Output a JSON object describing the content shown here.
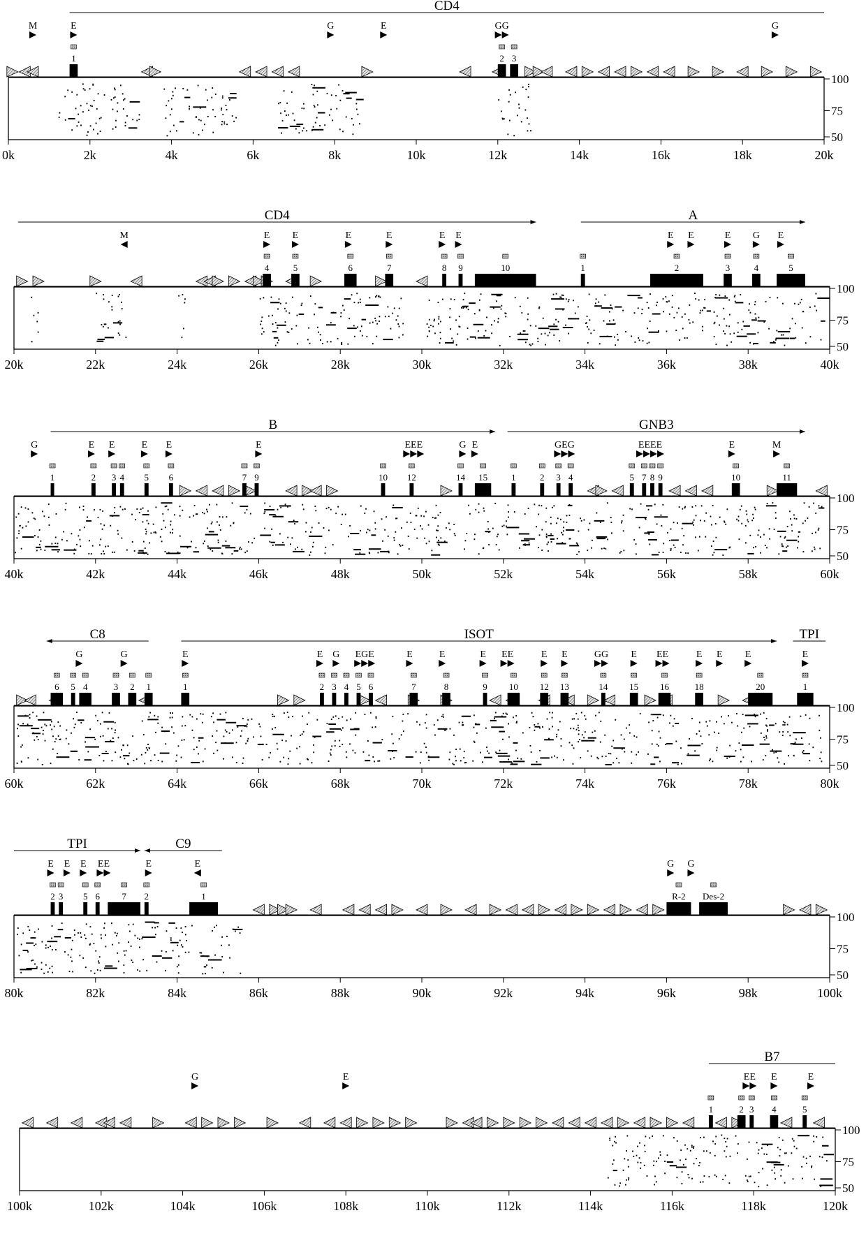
{
  "panels": [
    {
      "name": "panel-0-20k",
      "x_ticks": [
        "0k",
        "2k",
        "4k",
        "6k",
        "8k",
        "10k",
        "12k",
        "14k",
        "16k",
        "18k",
        "20k"
      ],
      "y_ticks": [
        "100",
        "75",
        "50"
      ],
      "genes": [
        {
          "label": "CD4",
          "start": 1.5,
          "end": 20,
          "direction": "none"
        }
      ],
      "markers": [
        {
          "letter": "M",
          "pos": 0.6,
          "dir": "right"
        },
        {
          "letter": "E",
          "pos": 1.6,
          "dir": "right"
        },
        {
          "letter": "G",
          "pos": 7.9,
          "dir": "right"
        },
        {
          "letter": "E",
          "pos": 9.2,
          "dir": "right"
        },
        {
          "letter": "GG",
          "pos": 12.1,
          "dir": "right"
        },
        {
          "letter": "G",
          "pos": 18.8,
          "dir": "right"
        }
      ],
      "exons": [
        {
          "label": "1",
          "start": 1.5,
          "end": 1.7
        },
        {
          "label": "2",
          "start": 12.0,
          "end": 12.2
        },
        {
          "label": "3",
          "start": 12.3,
          "end": 12.5
        }
      ]
    },
    {
      "name": "panel-20k-40k",
      "x_ticks": [
        "20k",
        "22k",
        "24k",
        "26k",
        "28k",
        "30k",
        "32k",
        "34k",
        "36k",
        "38k",
        "40k"
      ],
      "y_ticks": [
        "100",
        "75",
        "50"
      ],
      "genes": [
        {
          "label": "CD4",
          "start": 20.1,
          "end": 32.8,
          "direction": "right"
        },
        {
          "label": "A",
          "start": 33.9,
          "end": 39.4,
          "direction": "right"
        }
      ],
      "markers": [
        {
          "letter": "M",
          "pos": 22.7,
          "dir": "left"
        },
        {
          "letter": "E",
          "pos": 26.2,
          "dir": "right"
        },
        {
          "letter": "E",
          "pos": 26.9,
          "dir": "right"
        },
        {
          "letter": "E",
          "pos": 28.2,
          "dir": "right"
        },
        {
          "letter": "E",
          "pos": 29.2,
          "dir": "right"
        },
        {
          "letter": "E",
          "pos": 30.5,
          "dir": "right"
        },
        {
          "letter": "E",
          "pos": 30.9,
          "dir": "right"
        },
        {
          "letter": "E",
          "pos": 36.1,
          "dir": "right"
        },
        {
          "letter": "E",
          "pos": 36.6,
          "dir": "right"
        },
        {
          "letter": "E",
          "pos": 37.5,
          "dir": "right"
        },
        {
          "letter": "G",
          "pos": 38.2,
          "dir": "right"
        },
        {
          "letter": "E",
          "pos": 38.8,
          "dir": "right"
        }
      ],
      "exons": [
        {
          "label": "4",
          "start": 26.1,
          "end": 26.3
        },
        {
          "label": "5",
          "start": 26.8,
          "end": 27.0
        },
        {
          "label": "6",
          "start": 28.1,
          "end": 28.4
        },
        {
          "label": "7",
          "start": 29.1,
          "end": 29.3
        },
        {
          "label": "8",
          "start": 30.5,
          "end": 30.6
        },
        {
          "label": "9",
          "start": 30.9,
          "end": 31.0
        },
        {
          "label": "10",
          "start": 31.3,
          "end": 32.8
        },
        {
          "label": "1",
          "start": 33.9,
          "end": 34.0
        },
        {
          "label": "2",
          "start": 35.6,
          "end": 36.9
        },
        {
          "label": "3",
          "start": 37.4,
          "end": 37.6
        },
        {
          "label": "4",
          "start": 38.1,
          "end": 38.3
        },
        {
          "label": "5",
          "start": 38.7,
          "end": 39.4
        }
      ]
    },
    {
      "name": "panel-40k-60k",
      "x_ticks": [
        "40k",
        "42k",
        "44k",
        "46k",
        "48k",
        "50k",
        "52k",
        "54k",
        "56k",
        "58k",
        "60k"
      ],
      "y_ticks": [
        "100",
        "75",
        "50"
      ],
      "genes": [
        {
          "label": "B",
          "start": 40.9,
          "end": 51.8,
          "direction": "right"
        },
        {
          "label": "GNB3",
          "start": 52.1,
          "end": 59.4,
          "direction": "right"
        }
      ],
      "markers": [
        {
          "letter": "G",
          "pos": 40.5,
          "dir": "right"
        },
        {
          "letter": "E",
          "pos": 41.9,
          "dir": "right"
        },
        {
          "letter": "E",
          "pos": 42.4,
          "dir": "right"
        },
        {
          "letter": "E",
          "pos": 43.2,
          "dir": "right"
        },
        {
          "letter": "E",
          "pos": 43.8,
          "dir": "right"
        },
        {
          "letter": "E",
          "pos": 46.0,
          "dir": "right"
        },
        {
          "letter": "EEE",
          "pos": 49.8,
          "dir": "right"
        },
        {
          "letter": "G",
          "pos": 51.0,
          "dir": "right"
        },
        {
          "letter": "E",
          "pos": 51.3,
          "dir": "right"
        },
        {
          "letter": "GEG",
          "pos": 53.5,
          "dir": "right"
        },
        {
          "letter": "EEEE",
          "pos": 55.6,
          "dir": "right"
        },
        {
          "letter": "E",
          "pos": 57.6,
          "dir": "right"
        },
        {
          "letter": "M",
          "pos": 58.7,
          "dir": "right"
        }
      ],
      "exons": [
        {
          "label": "1",
          "start": 40.9,
          "end": 40.95
        },
        {
          "label": "2",
          "start": 41.9,
          "end": 42.0
        },
        {
          "label": "3",
          "start": 42.4,
          "end": 42.5
        },
        {
          "label": "4",
          "start": 42.6,
          "end": 42.7
        },
        {
          "label": "5",
          "start": 43.2,
          "end": 43.3
        },
        {
          "label": "6",
          "start": 43.8,
          "end": 43.9
        },
        {
          "label": "7",
          "start": 45.6,
          "end": 45.7
        },
        {
          "label": "9",
          "start": 45.9,
          "end": 46.0
        },
        {
          "label": "10",
          "start": 49.0,
          "end": 49.1
        },
        {
          "label": "12",
          "start": 49.7,
          "end": 49.8
        },
        {
          "label": "14",
          "start": 50.9,
          "end": 51.0
        },
        {
          "label": "15",
          "start": 51.3,
          "end": 51.7
        },
        {
          "label": "1",
          "start": 52.2,
          "end": 52.3
        },
        {
          "label": "2",
          "start": 52.9,
          "end": 53.0
        },
        {
          "label": "3",
          "start": 53.3,
          "end": 53.4
        },
        {
          "label": "4",
          "start": 53.6,
          "end": 53.7
        },
        {
          "label": "5",
          "start": 55.1,
          "end": 55.2
        },
        {
          "label": "7",
          "start": 55.4,
          "end": 55.5
        },
        {
          "label": "8",
          "start": 55.6,
          "end": 55.7
        },
        {
          "label": "9",
          "start": 55.8,
          "end": 55.9
        },
        {
          "label": "10",
          "start": 57.6,
          "end": 57.8
        },
        {
          "label": "11",
          "start": 58.7,
          "end": 59.2
        }
      ]
    },
    {
      "name": "panel-60k-80k",
      "x_ticks": [
        "60k",
        "62k",
        "64k",
        "66k",
        "68k",
        "70k",
        "72k",
        "74k",
        "76k",
        "78k",
        "80k"
      ],
      "y_ticks": [
        "100",
        "75",
        "50"
      ],
      "genes": [
        {
          "label": "C8",
          "start": 60.8,
          "end": 63.3,
          "direction": "left"
        },
        {
          "label": "ISOT",
          "start": 64.1,
          "end": 78.7,
          "direction": "right"
        },
        {
          "label": "TPI",
          "start": 79.1,
          "end": 79.9,
          "direction": "none"
        }
      ],
      "markers": [
        {
          "letter": "G",
          "pos": 61.6,
          "dir": "right"
        },
        {
          "letter": "G",
          "pos": 62.7,
          "dir": "right"
        },
        {
          "letter": "E",
          "pos": 64.2,
          "dir": "right"
        },
        {
          "letter": "E",
          "pos": 67.5,
          "dir": "right"
        },
        {
          "letter": "G",
          "pos": 67.9,
          "dir": "right"
        },
        {
          "letter": "EGE",
          "pos": 68.6,
          "dir": "right"
        },
        {
          "letter": "E",
          "pos": 69.7,
          "dir": "right"
        },
        {
          "letter": "E",
          "pos": 70.5,
          "dir": "right"
        },
        {
          "letter": "E",
          "pos": 71.5,
          "dir": "right"
        },
        {
          "letter": "EE",
          "pos": 72.1,
          "dir": "right"
        },
        {
          "letter": "E",
          "pos": 73.0,
          "dir": "right"
        },
        {
          "letter": "E",
          "pos": 73.5,
          "dir": "right"
        },
        {
          "letter": "GG",
          "pos": 74.4,
          "dir": "right"
        },
        {
          "letter": "E",
          "pos": 75.2,
          "dir": "right"
        },
        {
          "letter": "EE",
          "pos": 75.9,
          "dir": "right"
        },
        {
          "letter": "E",
          "pos": 76.8,
          "dir": "right"
        },
        {
          "letter": "E",
          "pos": 77.3,
          "dir": "right"
        },
        {
          "letter": "E",
          "pos": 78.0,
          "dir": "right"
        },
        {
          "letter": "E",
          "pos": 79.4,
          "dir": "right"
        }
      ],
      "exons": [
        {
          "label": "6",
          "start": 60.9,
          "end": 61.2
        },
        {
          "label": "5",
          "start": 61.4,
          "end": 61.5
        },
        {
          "label": "4",
          "start": 61.6,
          "end": 61.9
        },
        {
          "label": "3",
          "start": 62.4,
          "end": 62.6
        },
        {
          "label": "2",
          "start": 62.8,
          "end": 63.0
        },
        {
          "label": "1",
          "start": 63.2,
          "end": 63.4
        },
        {
          "label": "1",
          "start": 64.1,
          "end": 64.3
        },
        {
          "label": "2",
          "start": 67.5,
          "end": 67.6
        },
        {
          "label": "3",
          "start": 67.8,
          "end": 67.9
        },
        {
          "label": "4",
          "start": 68.1,
          "end": 68.2
        },
        {
          "label": "5",
          "start": 68.4,
          "end": 68.5
        },
        {
          "label": "6",
          "start": 68.7,
          "end": 68.8
        },
        {
          "label": "7",
          "start": 69.7,
          "end": 69.9
        },
        {
          "label": "8",
          "start": 70.5,
          "end": 70.7
        },
        {
          "label": "9",
          "start": 71.5,
          "end": 71.6
        },
        {
          "label": "10",
          "start": 72.1,
          "end": 72.4
        },
        {
          "label": "12",
          "start": 72.9,
          "end": 73.1
        },
        {
          "label": "13",
          "start": 73.4,
          "end": 73.6
        },
        {
          "label": "14",
          "start": 74.4,
          "end": 74.5
        },
        {
          "label": "15",
          "start": 75.1,
          "end": 75.3
        },
        {
          "label": "16",
          "start": 75.8,
          "end": 76.1
        },
        {
          "label": "18",
          "start": 76.7,
          "end": 76.9
        },
        {
          "label": "20",
          "start": 78.0,
          "end": 78.6
        },
        {
          "label": "1",
          "start": 79.2,
          "end": 79.6
        }
      ]
    },
    {
      "name": "panel-80k-100k",
      "x_ticks": [
        "80k",
        "82k",
        "84k",
        "86k",
        "88k",
        "90k",
        "92k",
        "94k",
        "96k",
        "98k",
        "100k"
      ],
      "y_ticks": [
        "100",
        "75",
        "50"
      ],
      "genes": [
        {
          "label": "TPI",
          "start": 80.0,
          "end": 83.1,
          "direction": "right"
        },
        {
          "label": "C9",
          "start": 83.2,
          "end": 85.1,
          "direction": "left"
        }
      ],
      "markers": [
        {
          "letter": "E",
          "pos": 80.9,
          "dir": "right"
        },
        {
          "letter": "E",
          "pos": 81.3,
          "dir": "right"
        },
        {
          "letter": "E",
          "pos": 81.7,
          "dir": "right"
        },
        {
          "letter": "EE",
          "pos": 82.2,
          "dir": "right"
        },
        {
          "letter": "E",
          "pos": 83.3,
          "dir": "right"
        },
        {
          "letter": "E",
          "pos": 84.5,
          "dir": "left"
        },
        {
          "letter": "G",
          "pos": 96.1,
          "dir": "right"
        },
        {
          "letter": "G",
          "pos": 96.6,
          "dir": "right"
        }
      ],
      "exons": [
        {
          "label": "2",
          "start": 80.9,
          "end": 81.0
        },
        {
          "label": "3",
          "start": 81.1,
          "end": 81.2
        },
        {
          "label": "5",
          "start": 81.7,
          "end": 81.8
        },
        {
          "label": "6",
          "start": 82.0,
          "end": 82.1
        },
        {
          "label": "7",
          "start": 82.3,
          "end": 83.1
        },
        {
          "label": "2",
          "start": 83.2,
          "end": 83.3
        },
        {
          "label": "1",
          "start": 84.3,
          "end": 85.0
        },
        {
          "label": "R-2",
          "start": 96.0,
          "end": 96.6
        },
        {
          "label": "Des-2",
          "start": 96.8,
          "end": 97.5
        }
      ]
    },
    {
      "name": "panel-100k-120k",
      "x_ticks": [
        "100k",
        "102k",
        "104k",
        "106k",
        "108k",
        "110k",
        "112k",
        "114k",
        "116k",
        "118k",
        "120k"
      ],
      "y_ticks": [
        "100",
        "75",
        "50"
      ],
      "genes": [
        {
          "label": "B7",
          "start": 116.9,
          "end": 120.0,
          "direction": "none"
        }
      ],
      "markers": [
        {
          "letter": "G",
          "pos": 104.3,
          "dir": "right"
        },
        {
          "letter": "E",
          "pos": 108.0,
          "dir": "right"
        },
        {
          "letter": "EE",
          "pos": 117.9,
          "dir": "right"
        },
        {
          "letter": "E",
          "pos": 118.5,
          "dir": "right"
        },
        {
          "letter": "E",
          "pos": 119.4,
          "dir": "right"
        }
      ],
      "exons": [
        {
          "label": "1",
          "start": 116.9,
          "end": 117.0
        },
        {
          "label": "2",
          "start": 117.6,
          "end": 117.8
        },
        {
          "label": "3",
          "start": 117.9,
          "end": 118.0
        },
        {
          "label": "4",
          "start": 118.4,
          "end": 118.6
        },
        {
          "label": "5",
          "start": 119.2,
          "end": 119.3
        }
      ]
    }
  ]
}
